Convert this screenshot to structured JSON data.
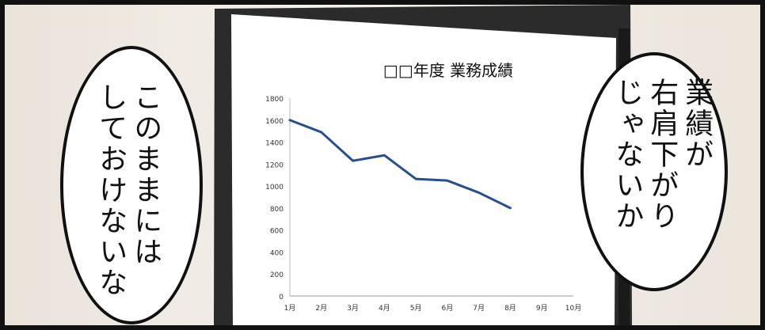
{
  "bubbles": {
    "left_line1": "このままには",
    "left_line2": "しておけないな",
    "right_line1": "業績が",
    "right_line2": "右肩下がり",
    "right_line3": "じゃないか"
  },
  "colors": {
    "line": "#264f90",
    "ink": "#111111",
    "screen": "#ffffff",
    "frame": "#2b2b2b"
  },
  "chart_data": {
    "type": "line",
    "title": "□□年度 業務成績",
    "categories": [
      "1月",
      "2月",
      "3月",
      "4月",
      "5月",
      "6月",
      "7月",
      "8月",
      "9月",
      "10月"
    ],
    "series": [
      {
        "values": [
          1600,
          1490,
          1230,
          1280,
          1065,
          1050,
          940,
          800,
          null,
          null
        ]
      }
    ],
    "ylim": [
      0,
      1800
    ],
    "yticks": [
      0,
      200,
      400,
      600,
      800,
      1000,
      1200,
      1400,
      1600,
      1800
    ],
    "grid": false
  }
}
